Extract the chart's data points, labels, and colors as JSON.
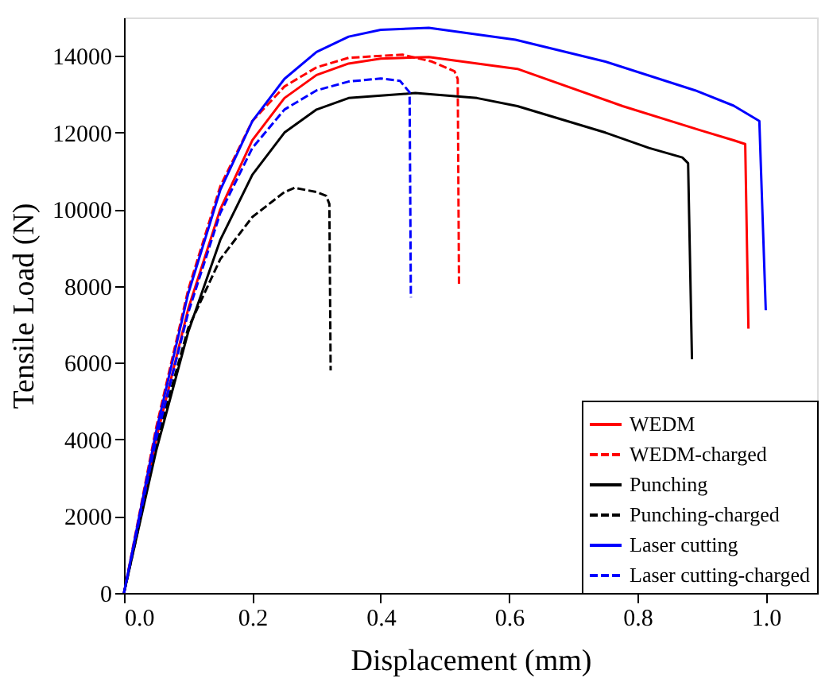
{
  "chart_data": {
    "type": "line",
    "xlabel": "Displacement (mm)",
    "ylabel": "Tensile Load (N)",
    "xlim": [
      0,
      1.08
    ],
    "xticks": [
      {
        "value": 0,
        "label": "0.0"
      },
      0.2,
      0.4,
      0.6,
      0.8,
      {
        "value": 1.0,
        "label": "1.0"
      }
    ],
    "ylim": [
      0,
      15000
    ],
    "yticks": [
      0,
      2000,
      4000,
      6000,
      8000,
      10000,
      12000,
      14000
    ],
    "grid": false,
    "legend": "bottom right",
    "marker": "none",
    "series": [
      {
        "name": "WEDM",
        "color": "#ff0000",
        "line_style": "solid",
        "x": [
          0,
          0.05,
          0.1,
          0.15,
          0.2,
          0.25,
          0.3,
          0.35,
          0.4,
          0.475,
          0.613,
          0.777,
          0.9,
          0.95,
          0.968,
          0.973
        ],
        "values": [
          0,
          4000,
          7400,
          10000,
          11800,
          12900,
          13500,
          13800,
          13930,
          13970,
          13660,
          12690,
          12050,
          11800,
          11700,
          6890
        ]
      },
      {
        "name": "WEDM-charged",
        "color": "#ff0000",
        "line_style": "dashed",
        "x": [
          0,
          0.05,
          0.1,
          0.15,
          0.2,
          0.25,
          0.3,
          0.35,
          0.434,
          0.48,
          0.515,
          0.52,
          0.522
        ],
        "values": [
          0,
          4300,
          7900,
          10600,
          12300,
          13200,
          13700,
          13950,
          14030,
          13850,
          13600,
          13400,
          8060
        ]
      },
      {
        "name": "Punching",
        "color": "#000000",
        "line_style": "solid",
        "x": [
          0,
          0.05,
          0.1,
          0.15,
          0.2,
          0.25,
          0.3,
          0.35,
          0.454,
          0.55,
          0.613,
          0.75,
          0.818,
          0.87,
          0.879,
          0.885
        ],
        "values": [
          0,
          3700,
          6800,
          9200,
          10900,
          12000,
          12600,
          12900,
          13030,
          12900,
          12690,
          12000,
          11600,
          11350,
          11200,
          6090
        ]
      },
      {
        "name": "Punching-charged",
        "color": "#000000",
        "line_style": "dashed",
        "x": [
          0,
          0.02,
          0.05,
          0.1,
          0.15,
          0.2,
          0.25,
          0.266,
          0.3,
          0.315,
          0.32,
          0.322
        ],
        "values": [
          0,
          1500,
          3900,
          6900,
          8700,
          9800,
          10450,
          10560,
          10450,
          10350,
          10140,
          5800
        ]
      },
      {
        "name": "Laser cutting",
        "color": "#0000ff",
        "line_style": "solid",
        "x": [
          0,
          0.05,
          0.1,
          0.15,
          0.2,
          0.25,
          0.3,
          0.35,
          0.4,
          0.475,
          0.61,
          0.75,
          0.89,
          0.95,
          0.99,
          1.0
        ],
        "values": [
          0,
          4200,
          7800,
          10500,
          12300,
          13400,
          14100,
          14500,
          14680,
          14730,
          14420,
          13850,
          13100,
          12700,
          12300,
          7370
        ]
      },
      {
        "name": "Laser cutting-charged",
        "color": "#0000ff",
        "line_style": "dashed",
        "x": [
          0,
          0.05,
          0.1,
          0.15,
          0.2,
          0.25,
          0.3,
          0.35,
          0.4,
          0.43,
          0.445,
          0.447
        ],
        "values": [
          0,
          4000,
          7300,
          9900,
          11600,
          12600,
          13100,
          13330,
          13410,
          13350,
          13050,
          7700
        ]
      }
    ]
  }
}
